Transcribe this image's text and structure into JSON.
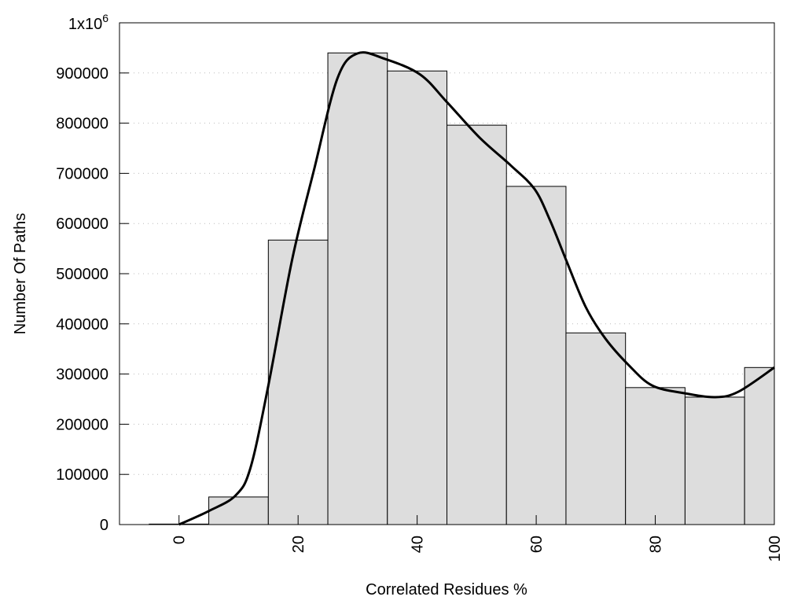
{
  "chart_data": {
    "type": "bar",
    "title": "",
    "xlabel": "Correlated Residues %",
    "ylabel": "Number Of Paths",
    "xlim": [
      -10,
      100
    ],
    "ylim": [
      0,
      1000000
    ],
    "grid": "horizontal dotted",
    "x_ticks": [
      "0",
      "20",
      "40",
      "60",
      "80",
      "100"
    ],
    "x_tick_values": [
      0,
      20,
      40,
      60,
      80,
      100
    ],
    "y_ticks": [
      "0",
      "100000",
      "200000",
      "300000",
      "400000",
      "500000",
      "600000",
      "700000",
      "800000",
      "900000"
    ],
    "y_tick_values": [
      0,
      100000,
      200000,
      300000,
      400000,
      500000,
      600000,
      700000,
      800000,
      900000
    ],
    "y_top_label": {
      "base": "1x10",
      "exp": "6"
    },
    "bar_width": 10,
    "bars": {
      "x": [
        0,
        10,
        20,
        30,
        40,
        50,
        60,
        70,
        80,
        90,
        100
      ],
      "values": [
        1000,
        55000,
        567000,
        940000,
        904000,
        796000,
        674000,
        382000,
        273000,
        254000,
        313000
      ]
    },
    "curve": {
      "x": [
        0,
        5,
        9.5,
        12,
        15,
        19,
        22.7,
        26.6,
        30,
        34.6,
        40.5,
        45,
        50.5,
        55.7,
        59.7,
        62.3,
        65,
        68.3,
        71.6,
        75.6,
        79.5,
        84.8,
        90.1,
        94,
        100
      ],
      "values": [
        0,
        27000,
        58000,
        113000,
        277000,
        528000,
        708000,
        889000,
        939000,
        928000,
        897000,
        842000,
        771000,
        716000,
        669000,
        607000,
        528000,
        434000,
        371000,
        317000,
        277000,
        262000,
        254000,
        265000,
        313000
      ]
    },
    "colors": {
      "bar_fill": "#dddddd",
      "bar_stroke": "#000000",
      "curve": "#000000",
      "grid": "#bbbbbb"
    }
  }
}
